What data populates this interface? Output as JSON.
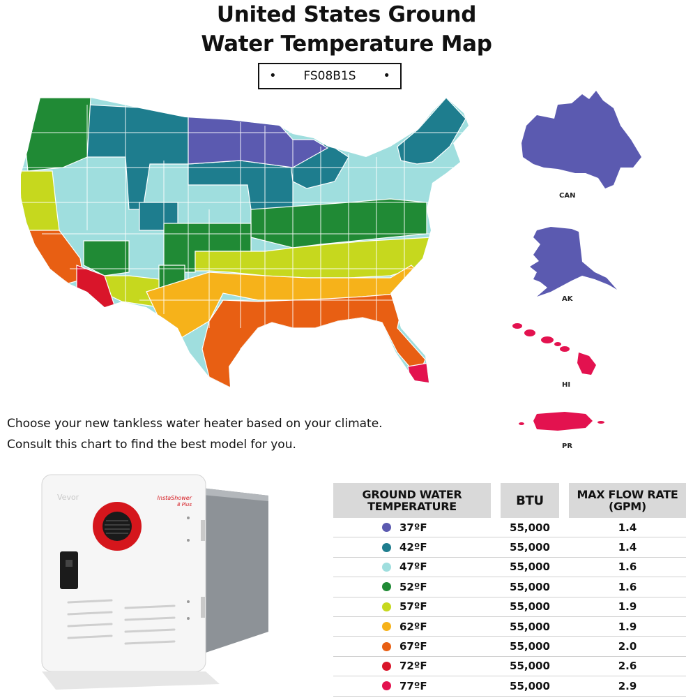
{
  "title_line1": "United States Ground",
  "title_line2": "Water Temperature Map",
  "model": "FS08B1S",
  "insets": {
    "can": "CAN",
    "ak": "AK",
    "hi": "HI",
    "pr": "PR"
  },
  "caption_line1": "Choose your new tankless water heater based on your climate.",
  "caption_line2": "Consult this chart to find the best model for you.",
  "heater": {
    "brand": "Vevor",
    "model_label_1": "InstaShower",
    "model_label_2": "8 Plus"
  },
  "colors": {
    "t37": "#5b5ab0",
    "t42": "#1e7d8e",
    "t47": "#9fdede",
    "t52": "#208a35",
    "t57": "#c6d81e",
    "t62": "#f6b21a",
    "t67": "#e85f13",
    "t72": "#d9152a",
    "t77": "#e3124f"
  },
  "table": {
    "headers": [
      "GROUND WATER TEMPERATURE",
      "BTU",
      "MAX FLOW RATE (GPM)"
    ],
    "rows": [
      {
        "temp": "37ºF",
        "btu": "55,000",
        "gpm": "1.4",
        "color": "#5b5ab0"
      },
      {
        "temp": "42ºF",
        "btu": "55,000",
        "gpm": "1.4",
        "color": "#1e7d8e"
      },
      {
        "temp": "47ºF",
        "btu": "55,000",
        "gpm": "1.6",
        "color": "#9fdede"
      },
      {
        "temp": "52ºF",
        "btu": "55,000",
        "gpm": "1.6",
        "color": "#208a35"
      },
      {
        "temp": "57ºF",
        "btu": "55,000",
        "gpm": "1.9",
        "color": "#c6d81e"
      },
      {
        "temp": "62ºF",
        "btu": "55,000",
        "gpm": "1.9",
        "color": "#f6b21a"
      },
      {
        "temp": "67ºF",
        "btu": "55,000",
        "gpm": "2.0",
        "color": "#e85f13"
      },
      {
        "temp": "72ºF",
        "btu": "55,000",
        "gpm": "2.6",
        "color": "#d9152a"
      },
      {
        "temp": "77ºF",
        "btu": "55,000",
        "gpm": "2.9",
        "color": "#e3124f"
      }
    ]
  }
}
